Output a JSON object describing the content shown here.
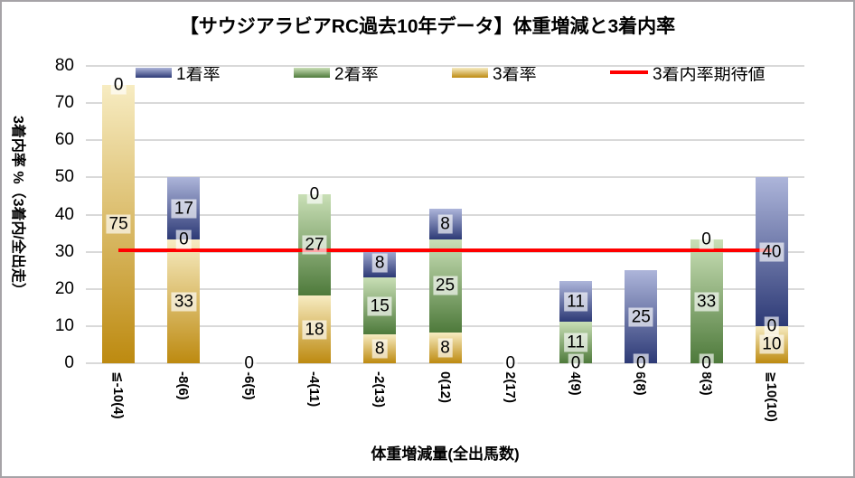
{
  "chart_data": {
    "type": "bar",
    "stacked": true,
    "title": "【サウジアラビアRC過去10年データ】体重増減と3着内率",
    "xlabel": "体重増減量(全出馬数)",
    "ylabel": "3着内率 %（3着内/全出走）",
    "ylim": [
      0,
      80
    ],
    "ytick_step": 10,
    "grid": true,
    "legend_position": "top",
    "categories": [
      "≦-10(4)",
      "-8(6)",
      "-6(5)",
      "-4(11)",
      "-2(13)",
      "0(12)",
      "2(17)",
      "4(9)",
      "6(8)",
      "8(3)",
      "≧10(10)"
    ],
    "series": [
      {
        "name": "3着率",
        "stack": "bottom",
        "color_dark": "#bd8a10",
        "color_light": "#f7ecc2",
        "values": [
          75,
          33.3,
          0,
          18.2,
          7.7,
          8.3,
          0,
          0,
          0,
          0,
          10
        ],
        "labels": [
          "75",
          "33",
          "0",
          "18",
          "8",
          "8",
          "0",
          "0",
          "0",
          "0",
          "10"
        ]
      },
      {
        "name": "2着率",
        "stack": "middle",
        "color_dark": "#4e7a3b",
        "color_light": "#c9dfb6",
        "values": [
          0,
          0,
          0,
          27.3,
          15.4,
          25,
          0,
          11.1,
          0,
          33.3,
          0
        ],
        "labels": [
          "0",
          "0",
          "0",
          "27",
          "15",
          "25",
          "0",
          "11",
          "0",
          "33",
          "0"
        ]
      },
      {
        "name": "1着率",
        "stack": "top",
        "color_dark": "#2d3a76",
        "color_light": "#adb5da",
        "values": [
          0,
          16.7,
          0,
          0,
          7.7,
          8.3,
          0,
          11.1,
          25,
          0,
          40
        ],
        "labels": [
          "0",
          "17",
          "0",
          "0",
          "8",
          "8",
          "0",
          "11",
          "25",
          "0",
          "40"
        ]
      }
    ],
    "expected_line": {
      "name": "3着内率期待値",
      "value": 30.4,
      "color": "#ff0000"
    },
    "legend": [
      {
        "label": "1着率",
        "swatch": "bar",
        "series": "1着率"
      },
      {
        "label": "2着率",
        "swatch": "bar",
        "series": "2着率"
      },
      {
        "label": "3着率",
        "swatch": "bar",
        "series": "3着率"
      },
      {
        "label": "3着内率期待値",
        "swatch": "line"
      }
    ],
    "colors": {
      "gridline": "#d9d9d9",
      "axis_line": "#d9d9d9",
      "label_text": "#000000",
      "frame_border": "#a6a3a7"
    }
  }
}
